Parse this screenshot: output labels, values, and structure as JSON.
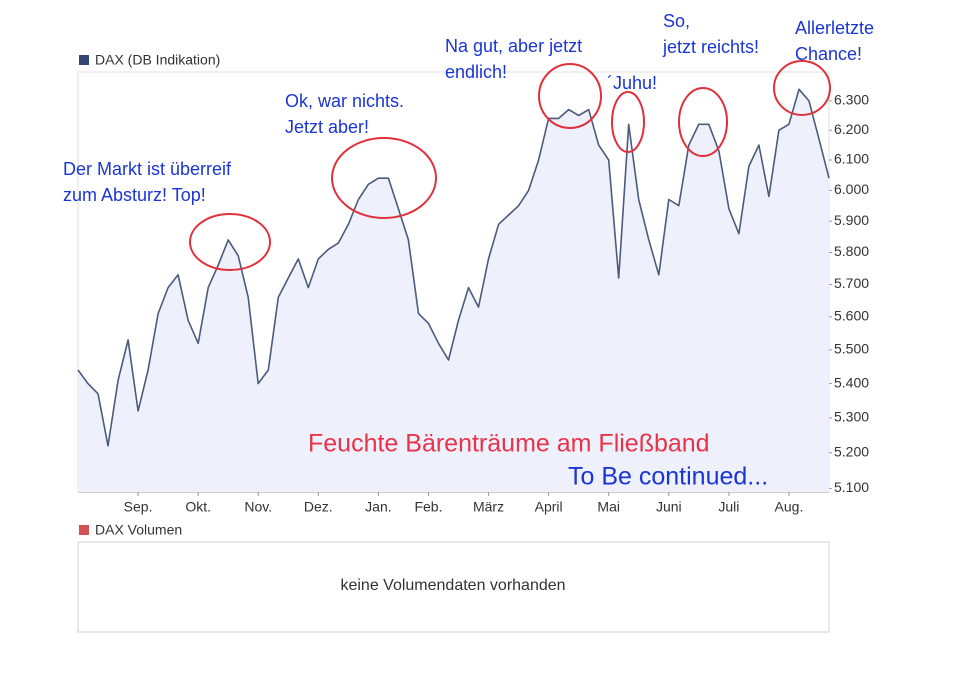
{
  "chart_data": {
    "type": "line",
    "legend_label": "DAX (DB Indikation)",
    "log_scale": true,
    "categories": [
      null,
      null,
      null,
      null,
      null,
      null,
      "Sep.",
      null,
      null,
      null,
      null,
      null,
      "Okt.",
      null,
      null,
      null,
      null,
      null,
      "Nov.",
      null,
      null,
      null,
      null,
      null,
      "Dez.",
      null,
      null,
      null,
      null,
      null,
      "Jan.",
      null,
      null,
      null,
      null,
      "Feb.",
      null,
      null,
      null,
      null,
      null,
      "März",
      null,
      null,
      null,
      null,
      null,
      "April",
      null,
      null,
      null,
      null,
      null,
      "Mai",
      null,
      null,
      null,
      null,
      null,
      "Juni",
      null,
      null,
      null,
      null,
      null,
      "Juli",
      null,
      null,
      null,
      null,
      null,
      "Aug.",
      null,
      null,
      null,
      null
    ],
    "series": [
      {
        "name": "DAX (DB Indikation)",
        "color": "#4b5b7c",
        "fill": "#eef0fb",
        "values": [
          5440,
          5400,
          5370,
          5220,
          5410,
          5530,
          5320,
          5440,
          5610,
          5690,
          5730,
          5590,
          5520,
          5690,
          5760,
          5840,
          5790,
          5660,
          5400,
          5440,
          5660,
          5720,
          5780,
          5690,
          5780,
          5810,
          5830,
          5890,
          5970,
          6020,
          6040,
          6040,
          5940,
          5840,
          5610,
          5580,
          5520,
          5470,
          5590,
          5690,
          5630,
          5780,
          5890,
          5920,
          5950,
          6000,
          6100,
          6240,
          6240,
          6270,
          6250,
          6270,
          6150,
          6100,
          5720,
          6220,
          5970,
          5840,
          5730,
          5970,
          5950,
          6150,
          6220,
          6220,
          6130,
          5940,
          5860,
          6080,
          6150,
          5980,
          6200,
          6220,
          6340,
          6300,
          6170,
          6040
        ]
      }
    ],
    "ylim": [
      5090,
      6400
    ],
    "yticks": [
      {
        "value": 5100,
        "label": "5.100"
      },
      {
        "value": 5200,
        "label": "5.200"
      },
      {
        "value": 5300,
        "label": "5.300"
      },
      {
        "value": 5400,
        "label": "5.400"
      },
      {
        "value": 5500,
        "label": "5.500"
      },
      {
        "value": 5600,
        "label": "5.600"
      },
      {
        "value": 5700,
        "label": "5.700"
      },
      {
        "value": 5800,
        "label": "5.800"
      },
      {
        "value": 5900,
        "label": "5.900"
      },
      {
        "value": 6000,
        "label": "6.000"
      },
      {
        "value": 6100,
        "label": "6.100"
      },
      {
        "value": 6200,
        "label": "6.200"
      },
      {
        "value": 6300,
        "label": "6.300"
      }
    ],
    "annotations": [
      {
        "lines": [
          "Der Markt ist überreif",
          "zum Absturz! Top!"
        ]
      },
      {
        "lines": [
          "Ok, war nichts.",
          "Jetzt aber!"
        ]
      },
      {
        "lines": [
          "Na gut, aber jetzt",
          "endlich!"
        ]
      },
      {
        "lines": [
          "´Juhu!"
        ]
      },
      {
        "lines": [
          "So,",
          "jetzt reichts!"
        ]
      },
      {
        "lines": [
          "Allerletzte",
          "Chance!"
        ]
      }
    ],
    "headline": "Feuchte Bärenträume am Fließband",
    "subline": "To Be continued...",
    "volume_panel": {
      "legend_label": "DAX Volumen",
      "message": "keine Volumendaten vorhanden"
    }
  }
}
